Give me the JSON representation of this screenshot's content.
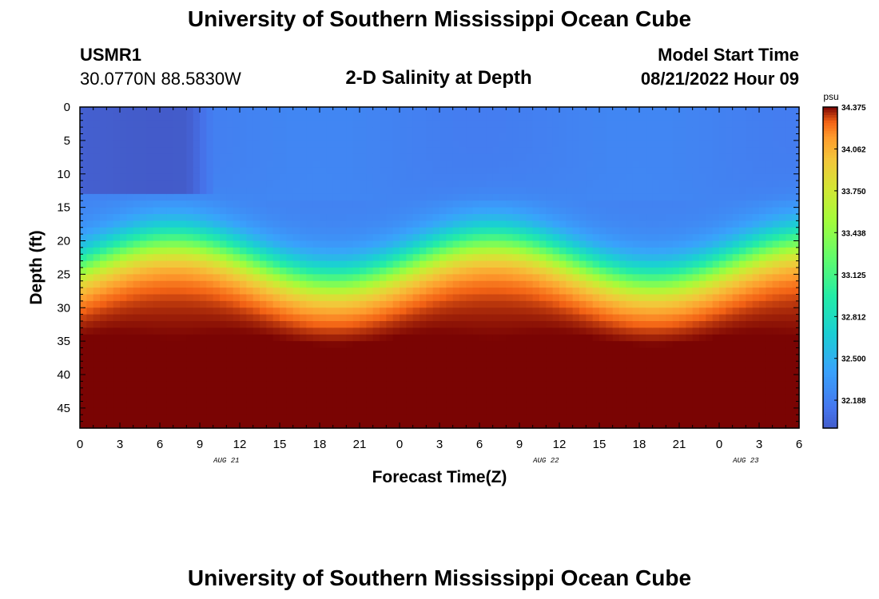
{
  "header": {
    "title": "University of Southern Mississippi Ocean Cube",
    "station_id": "USMR1",
    "coordinates": "30.0770N  88.5830W",
    "subtitle": "2-D Salinity at Depth",
    "model_start_label": "Model Start Time",
    "model_start_value": "08/21/2022 Hour 09"
  },
  "footer": {
    "title": "University of Southern Mississippi Ocean Cube"
  },
  "colors": {
    "axis": "#000000",
    "background": "#ffffff"
  },
  "chart_data": {
    "type": "heatmap",
    "title": "2-D Salinity at Depth",
    "xlabel": "Forecast Time(Z)",
    "ylabel": "Depth (ft)",
    "x_ticks": [
      "0",
      "3",
      "6",
      "9",
      "12",
      "15",
      "18",
      "21",
      "0",
      "3",
      "6",
      "9",
      "12",
      "15",
      "18",
      "21",
      "0",
      "3",
      "6"
    ],
    "x_range_hours": [
      0,
      54
    ],
    "date_labels": [
      {
        "label": "AUG 21",
        "hour": 11
      },
      {
        "label": "AUG 22",
        "hour": 35
      },
      {
        "label": "AUG 23",
        "hour": 50
      }
    ],
    "y_ticks": [
      "0",
      "5",
      "10",
      "15",
      "20",
      "25",
      "30",
      "35",
      "40",
      "45"
    ],
    "y_range_ft": [
      0,
      48
    ],
    "colorbar": {
      "unit": "psu",
      "range": [
        31.98,
        34.375
      ],
      "ticks": [
        "34.375",
        "34.062",
        "33.750",
        "33.438",
        "33.125",
        "32.812",
        "32.500",
        "32.188"
      ],
      "colormap": "turbo"
    },
    "field_description": {
      "surface_salinity_psu": 32.2,
      "cold_pool_region": {
        "hours": [
          0,
          9
        ],
        "depth_ft": [
          0,
          13
        ],
        "salinity_psu": 32.0
      },
      "halocline_depth_ft_min": 22,
      "halocline_depth_ft_max": 28,
      "halocline_oscillation_period_hours": 24,
      "bottom_salinity_psu": 34.3
    }
  }
}
